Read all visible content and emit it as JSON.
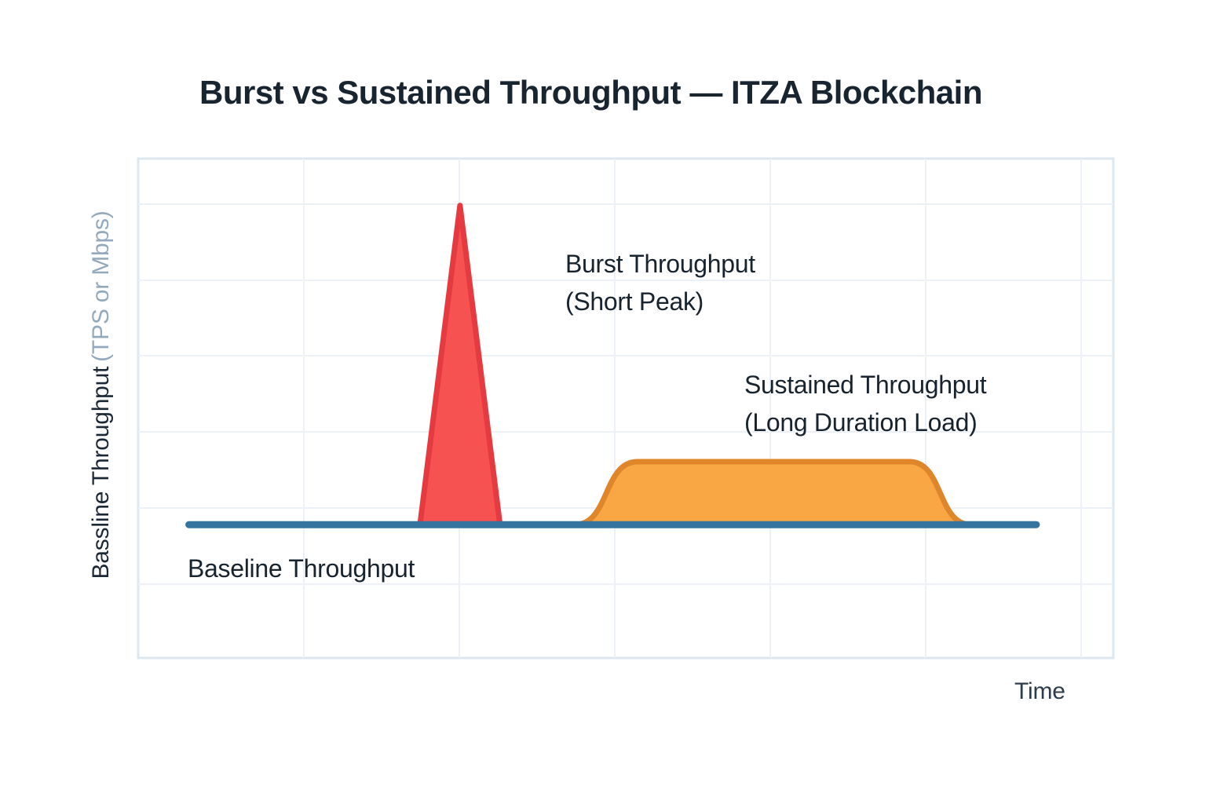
{
  "title": "Burst vs Sustained Throughput — ITZA Blockchain",
  "axis": {
    "y_label_main": "Bassline Throughput",
    "y_label_units": "(TPS or Mbps)",
    "x_label": "Time"
  },
  "annotations": {
    "burst": {
      "line1": "Burst Throughput",
      "line2": "(Short Peak)"
    },
    "sustained": {
      "line1": "Sustained Throughput",
      "line2": "(Long Duration Load)"
    },
    "baseline": {
      "label": "Baseline Throughput"
    }
  },
  "colors": {
    "background": "#ffffff",
    "title_text": "#18242f",
    "annotation_text": "#17232e",
    "x_label_text": "#2d3c4a",
    "y_label_units_text": "#93a9be",
    "grid": "#ecf1f7",
    "plot_border": "#dde7f0",
    "baseline_blue": "#35749f",
    "burst_fill": "#f65252",
    "burst_stroke": "#e53a40",
    "sustained_fill": "#f9a745",
    "sustained_stroke": "#e0862a"
  },
  "chart_data": {
    "type": "area",
    "title": "Burst vs Sustained Throughput — ITZA Blockchain",
    "xlabel": "Time",
    "ylabel": "Bassline Throughput (TPS or Mbps)",
    "grid": true,
    "legend": false,
    "axes_quantitative": false,
    "x_range": [
      0,
      1
    ],
    "y_range": [
      0,
      1
    ],
    "note": "Conceptual diagram; coordinates normalized 0-1 within plot area",
    "series": [
      {
        "name": "Burst Throughput (Short Peak)",
        "shape": "triangle-spike",
        "fill": "#f65252",
        "stroke": "#e53a40",
        "points": [
          [
            0.289,
            0.267
          ],
          [
            0.33,
            0.906
          ],
          [
            0.371,
            0.267
          ]
        ]
      },
      {
        "name": "Sustained Throughput (Long Duration Load)",
        "shape": "smooth-plateau",
        "fill": "#f9a745",
        "stroke": "#e0862a",
        "points": [
          [
            0.448,
            0.267
          ],
          [
            0.512,
            0.393
          ],
          [
            0.791,
            0.393
          ],
          [
            0.854,
            0.267
          ]
        ]
      },
      {
        "name": "Baseline Throughput",
        "shape": "line",
        "color": "#35749f",
        "points": [
          [
            0.052,
            0.267
          ],
          [
            0.921,
            0.267
          ]
        ]
      }
    ]
  }
}
